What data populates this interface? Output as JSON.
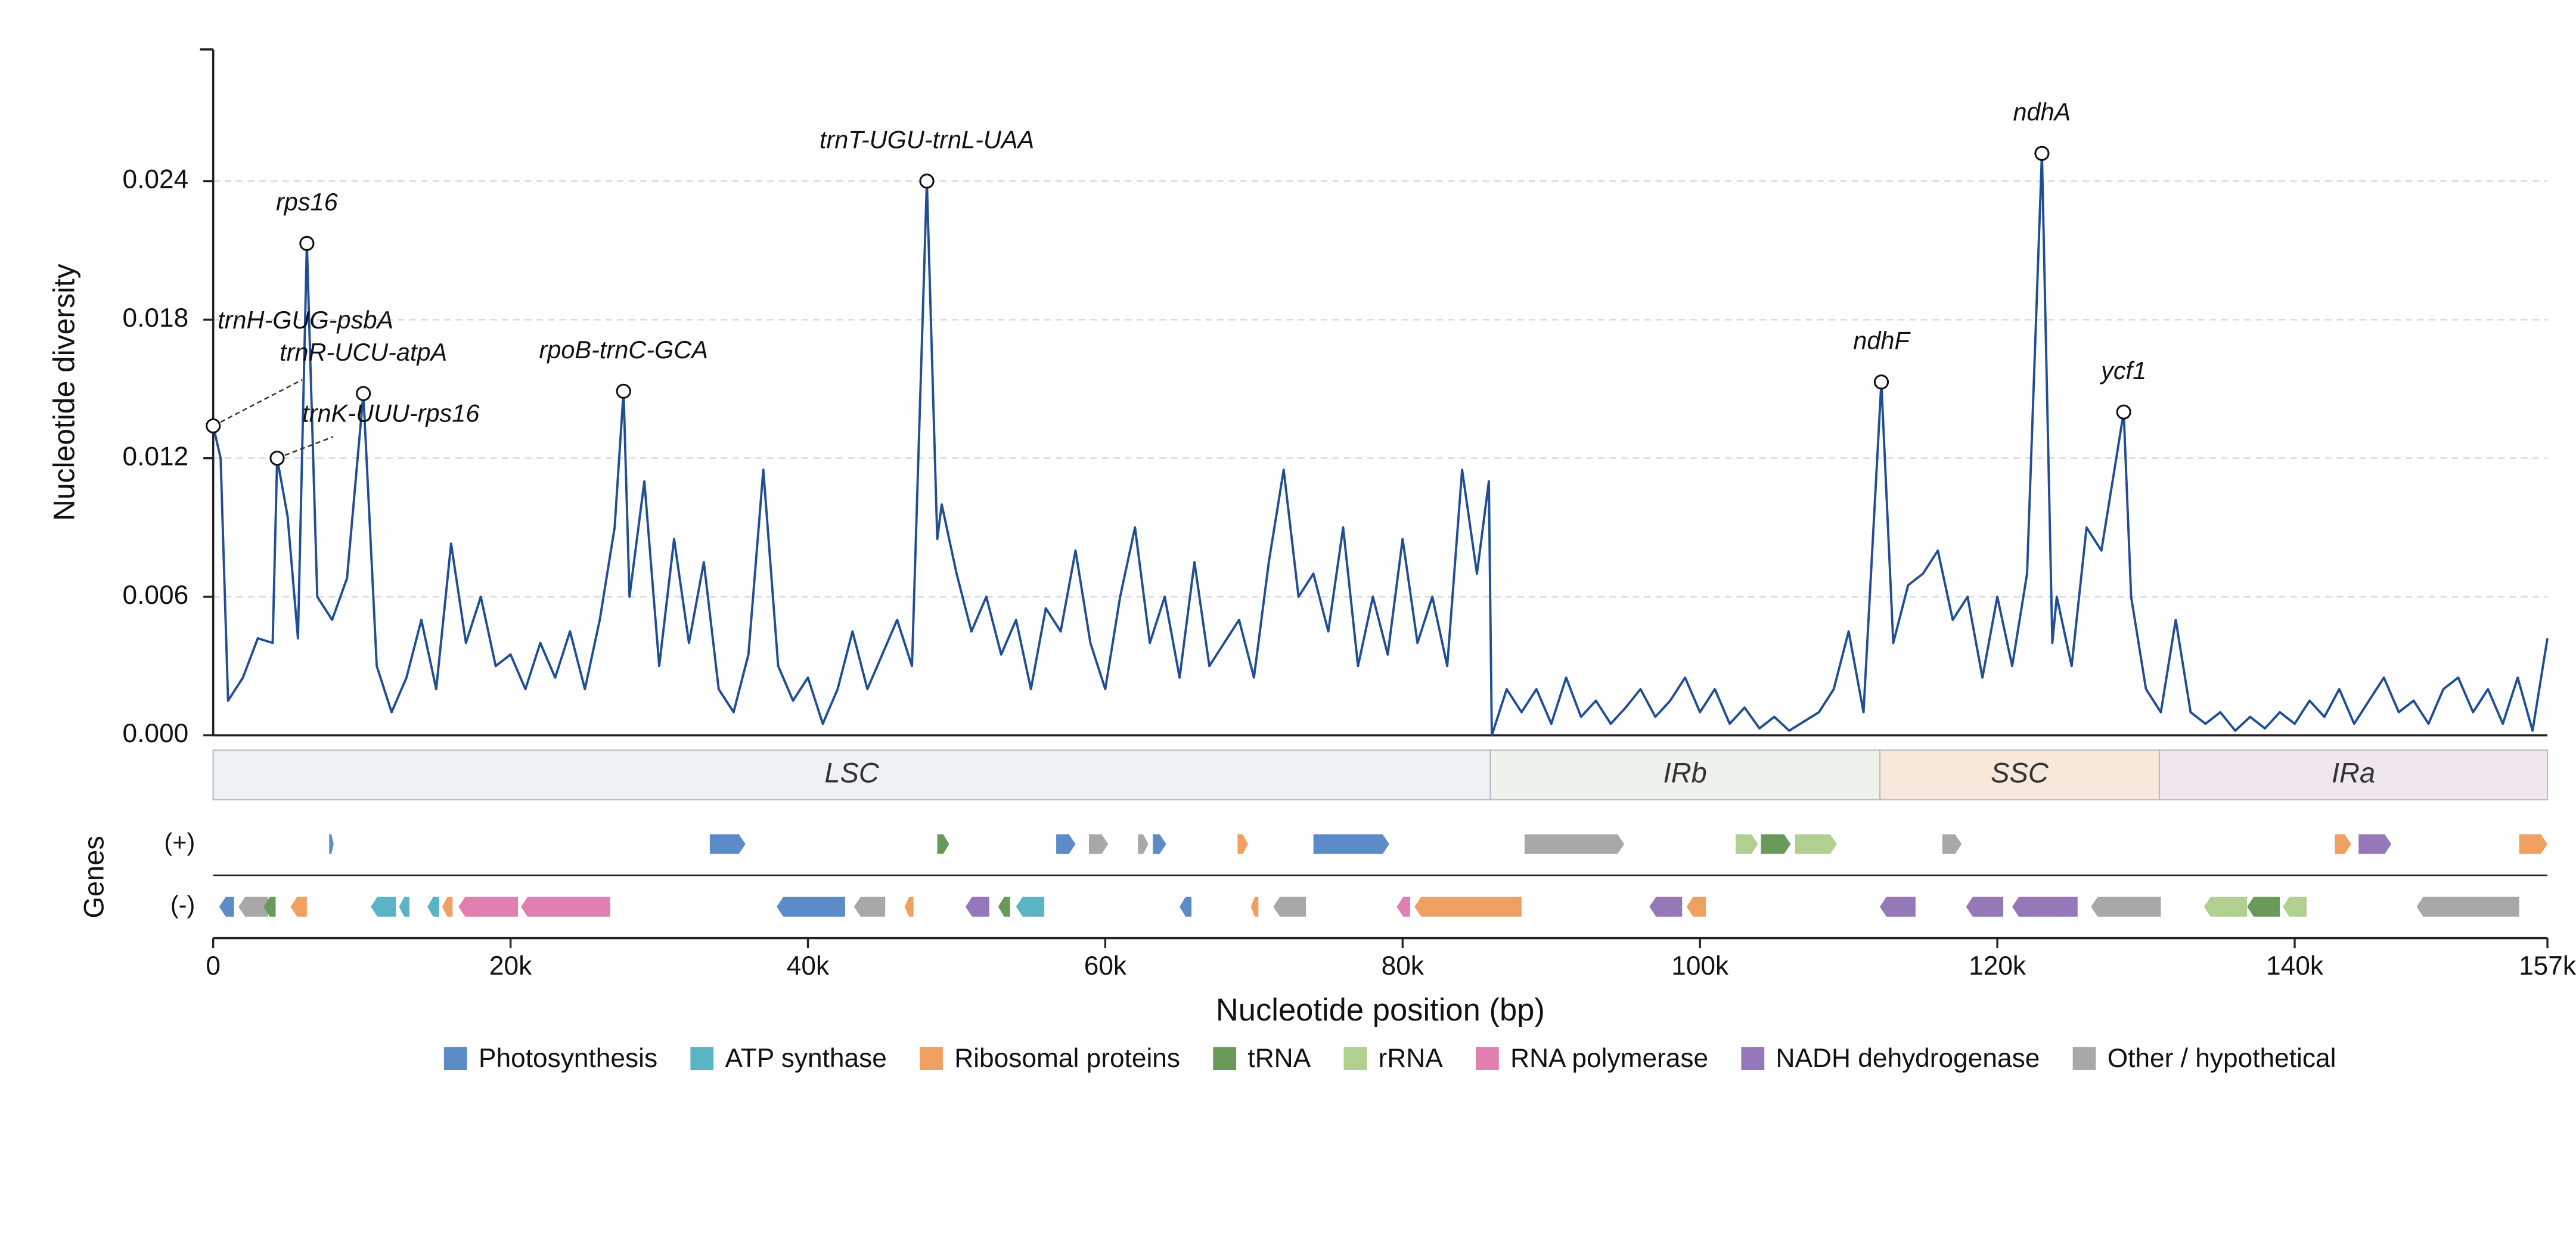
{
  "chart_data": {
    "type": "line",
    "y_label": "Nucleotide diversity",
    "x_label": "Nucleotide position (bp)",
    "ylim": [
      0,
      0.0297
    ],
    "yticks": [
      {
        "value": 0,
        "label": "0.000"
      },
      0.006,
      0.012,
      0.018,
      0.024
    ],
    "xlim": [
      0,
      157000
    ],
    "xticks": [
      0,
      {
        "value": 20000,
        "label": "20k"
      },
      {
        "value": 40000,
        "label": "40k"
      },
      {
        "value": 60000,
        "label": "60k"
      },
      {
        "value": 80000,
        "label": "80k"
      },
      {
        "value": 100000,
        "label": "100k"
      },
      {
        "value": 120000,
        "label": "120k"
      },
      {
        "value": 140000,
        "label": "140k"
      },
      {
        "value": 157000,
        "label": "157k"
      }
    ],
    "grid": true,
    "color": "#1f4e96",
    "x": [
      0,
      500,
      1000,
      2000,
      3000,
      4000,
      4300,
      5000,
      5700,
      6300,
      7000,
      8000,
      9000,
      10100,
      11000,
      12000,
      13000,
      14000,
      15000,
      16000,
      17000,
      18000,
      19000,
      20000,
      21000,
      22000,
      23000,
      24000,
      25000,
      26000,
      27000,
      27600,
      28000,
      29000,
      30000,
      31000,
      32000,
      33000,
      34000,
      35000,
      36000,
      37000,
      38000,
      39000,
      40000,
      41000,
      42000,
      43000,
      44000,
      45000,
      46000,
      47000,
      48000,
      48700,
      49000,
      50000,
      51000,
      52000,
      53000,
      54000,
      55000,
      56000,
      57000,
      58000,
      59000,
      60000,
      61000,
      62000,
      63000,
      64000,
      65000,
      66000,
      67000,
      68000,
      69000,
      70000,
      71000,
      72000,
      73000,
      74000,
      75000,
      76000,
      77000,
      78000,
      79000,
      80000,
      81000,
      82000,
      83000,
      84000,
      85000,
      85800,
      86000,
      87000,
      88000,
      89000,
      90000,
      91000,
      92000,
      93000,
      94000,
      95000,
      96000,
      97000,
      98000,
      99000,
      100000,
      101000,
      102000,
      103000,
      104000,
      105000,
      106000,
      107000,
      108000,
      109000,
      110000,
      111000,
      112200,
      113000,
      114000,
      115000,
      116000,
      117000,
      118000,
      119000,
      120000,
      121000,
      122000,
      123000,
      123700,
      124000,
      125000,
      126000,
      127000,
      128500,
      129000,
      130000,
      131000,
      132000,
      133000,
      134000,
      135000,
      136000,
      137000,
      138000,
      139000,
      140000,
      141000,
      142000,
      143000,
      144000,
      145000,
      146000,
      147000,
      148000,
      149000,
      150000,
      151000,
      152000,
      153000,
      154000,
      155000,
      156000,
      157000
    ],
    "values": [
      0.0134,
      0.012,
      0.0015,
      0.0025,
      0.0042,
      0.004,
      0.012,
      0.0095,
      0.0042,
      0.0213,
      0.006,
      0.005,
      0.0068,
      0.0148,
      0.003,
      0.001,
      0.0025,
      0.005,
      0.002,
      0.0083,
      0.004,
      0.006,
      0.003,
      0.0035,
      0.002,
      0.004,
      0.0025,
      0.0045,
      0.002,
      0.005,
      0.009,
      0.0149,
      0.006,
      0.011,
      0.003,
      0.0085,
      0.004,
      0.0075,
      0.002,
      0.001,
      0.0035,
      0.0115,
      0.003,
      0.0015,
      0.0025,
      0.0005,
      0.002,
      0.0045,
      0.002,
      0.0035,
      0.005,
      0.003,
      0.024,
      0.0085,
      0.01,
      0.007,
      0.0045,
      0.006,
      0.0035,
      0.005,
      0.002,
      0.0055,
      0.0045,
      0.008,
      0.004,
      0.002,
      0.006,
      0.009,
      0.004,
      0.006,
      0.0025,
      0.0075,
      0.003,
      0.004,
      0.005,
      0.0025,
      0.0075,
      0.0115,
      0.006,
      0.007,
      0.0045,
      0.009,
      0.003,
      0.006,
      0.0035,
      0.0085,
      0.004,
      0.006,
      0.003,
      0.0115,
      0.007,
      0.011,
      0,
      0.002,
      0.001,
      0.002,
      0.0005,
      0.0025,
      0.0008,
      0.0015,
      0.0005,
      0.0012,
      0.002,
      0.0008,
      0.0015,
      0.0025,
      0.001,
      0.002,
      0.0005,
      0.0012,
      0.0003,
      0.0008,
      0.0002,
      0.0006,
      0.001,
      0.002,
      0.0045,
      0.001,
      0.0153,
      0.004,
      0.0065,
      0.007,
      0.008,
      0.005,
      0.006,
      0.0025,
      0.006,
      0.003,
      0.007,
      0.0252,
      0.004,
      0.006,
      0.003,
      0.009,
      0.008,
      0.014,
      0.006,
      0.002,
      0.001,
      0.005,
      0.001,
      0.0005,
      0.001,
      0.0002,
      0.0008,
      0.0003,
      0.001,
      0.0005,
      0.0015,
      0.0008,
      0.002,
      0.0005,
      0.0015,
      0.0025,
      0.001,
      0.0015,
      0.0005,
      0.002,
      0.0025,
      0.001,
      0.002,
      0.0005,
      0.0025,
      0.0002,
      0.0042
    ],
    "annotations": [
      {
        "label": "rps16",
        "x": 6300,
        "y": 0.0213
      },
      {
        "label": "trnH-GUG-psbA",
        "x": 0,
        "y": 0.0134
      },
      {
        "label": "trnR-UCU-atpA",
        "x": 10100,
        "y": 0.0148
      },
      {
        "label": "trnK-UUU-rps16",
        "x": 4300,
        "y": 0.012
      },
      {
        "label": "rpoB-trnC-GCA",
        "x": 27600,
        "y": 0.0149
      },
      {
        "label": "trnT-UGU-trnL-UAA",
        "x": 48000,
        "y": 0.024
      },
      {
        "label": "ndhF",
        "x": 112200,
        "y": 0.0153
      },
      {
        "label": "ndhA",
        "x": 123000,
        "y": 0.0252
      },
      {
        "label": "ycf1",
        "x": 128500,
        "y": 0.014
      }
    ],
    "regions": [
      {
        "label": "LSC",
        "start": 0,
        "end": 85900,
        "color": "#eef2f5"
      },
      {
        "label": "IRb",
        "start": 85900,
        "end": 112100,
        "color": "#edf2ea"
      },
      {
        "label": "SSC",
        "start": 112100,
        "end": 130900,
        "color": "#f8e8da"
      },
      {
        "label": "IRa",
        "start": 130900,
        "end": 157000,
        "color": "#f0e6f0"
      }
    ],
    "gene_track": {
      "label": "Genes",
      "strands": [
        {
          "label": "(+)",
          "genes": [
            {
              "start": 7800,
              "end": 8100,
              "color": "#5b8cc8"
            },
            {
              "start": 33400,
              "end": 35800,
              "color": "#5b8cc8"
            },
            {
              "start": 48700,
              "end": 49500,
              "color": "#6a9a5a"
            },
            {
              "start": 56700,
              "end": 58000,
              "color": "#5b8cc8"
            },
            {
              "start": 58900,
              "end": 60200,
              "color": "#a8a8a8"
            },
            {
              "start": 62200,
              "end": 62900,
              "color": "#a8a8a8"
            },
            {
              "start": 63200,
              "end": 64100,
              "color": "#5b8cc8"
            },
            {
              "start": 68900,
              "end": 69600,
              "color": "#f0a060"
            },
            {
              "start": 74000,
              "end": 79100,
              "color": "#5b8cc8"
            },
            {
              "start": 88200,
              "end": 94900,
              "color": "#a8a8a8"
            },
            {
              "start": 102400,
              "end": 103900,
              "color": "#b0cf90"
            },
            {
              "start": 104100,
              "end": 106100,
              "color": "#6a9a5a"
            },
            {
              "start": 106400,
              "end": 109200,
              "color": "#b0cf90"
            },
            {
              "start": 116300,
              "end": 117600,
              "color": "#a8a8a8"
            },
            {
              "start": 142700,
              "end": 143800,
              "color": "#f0a060"
            },
            {
              "start": 144300,
              "end": 146500,
              "color": "#9478b8"
            },
            {
              "start": 155100,
              "end": 157000,
              "color": "#f0a060"
            }
          ]
        },
        {
          "label": "(-)",
          "genes": [
            {
              "start": 400,
              "end": 1400,
              "color": "#5b8cc8"
            },
            {
              "start": 1700,
              "end": 3700,
              "color": "#a8a8a8"
            },
            {
              "start": 3400,
              "end": 4200,
              "color": "#6a9a5a"
            },
            {
              "start": 5200,
              "end": 6300,
              "color": "#f0a060"
            },
            {
              "start": 10600,
              "end": 12300,
              "color": "#5ab4c4"
            },
            {
              "start": 12500,
              "end": 13200,
              "color": "#5ab4c4"
            },
            {
              "start": 14400,
              "end": 15200,
              "color": "#5ab4c4"
            },
            {
              "start": 15400,
              "end": 16100,
              "color": "#f0a060"
            },
            {
              "start": 16500,
              "end": 20500,
              "color": "#e07fb0"
            },
            {
              "start": 20700,
              "end": 26700,
              "color": "#e07fb0"
            },
            {
              "start": 37900,
              "end": 42500,
              "color": "#5b8cc8"
            },
            {
              "start": 43100,
              "end": 45200,
              "color": "#a8a8a8"
            },
            {
              "start": 46500,
              "end": 47100,
              "color": "#f0a060"
            },
            {
              "start": 50600,
              "end": 52200,
              "color": "#9478b8"
            },
            {
              "start": 52800,
              "end": 53600,
              "color": "#6a9a5a"
            },
            {
              "start": 54000,
              "end": 55900,
              "color": "#5ab4c4"
            },
            {
              "start": 65000,
              "end": 65800,
              "color": "#5b8cc8"
            },
            {
              "start": 69800,
              "end": 70300,
              "color": "#f0a060"
            },
            {
              "start": 71300,
              "end": 73500,
              "color": "#a8a8a8"
            },
            {
              "start": 79600,
              "end": 80500,
              "color": "#e07fb0"
            },
            {
              "start": 80800,
              "end": 88000,
              "color": "#f0a060"
            },
            {
              "start": 96600,
              "end": 98800,
              "color": "#9478b8"
            },
            {
              "start": 99100,
              "end": 100400,
              "color": "#f0a060"
            },
            {
              "start": 112100,
              "end": 114500,
              "color": "#9478b8"
            },
            {
              "start": 117900,
              "end": 120400,
              "color": "#9478b8"
            },
            {
              "start": 121000,
              "end": 125400,
              "color": "#9478b8"
            },
            {
              "start": 126300,
              "end": 131000,
              "color": "#a8a8a8"
            },
            {
              "start": 133900,
              "end": 136800,
              "color": "#b0cf90"
            },
            {
              "start": 136800,
              "end": 139000,
              "color": "#6a9a5a"
            },
            {
              "start": 139200,
              "end": 140800,
              "color": "#b0cf90"
            },
            {
              "start": 148200,
              "end": 155100,
              "color": "#a8a8a8"
            }
          ]
        }
      ]
    },
    "legend": [
      {
        "name": "Photosynthesis",
        "color": "#5b8cc8"
      },
      {
        "name": "ATP synthase",
        "color": "#5ab4c4"
      },
      {
        "name": "Ribosomal proteins",
        "color": "#f0a060"
      },
      {
        "name": "tRNA",
        "color": "#6a9a5a"
      },
      {
        "name": "rRNA",
        "color": "#b0cf90"
      },
      {
        "name": "RNA polymerase",
        "color": "#e07fb0"
      },
      {
        "name": "NADH dehydrogenase",
        "color": "#9478b8"
      },
      {
        "name": "Other / hypothetical",
        "color": "#a8a8a8"
      }
    ]
  }
}
